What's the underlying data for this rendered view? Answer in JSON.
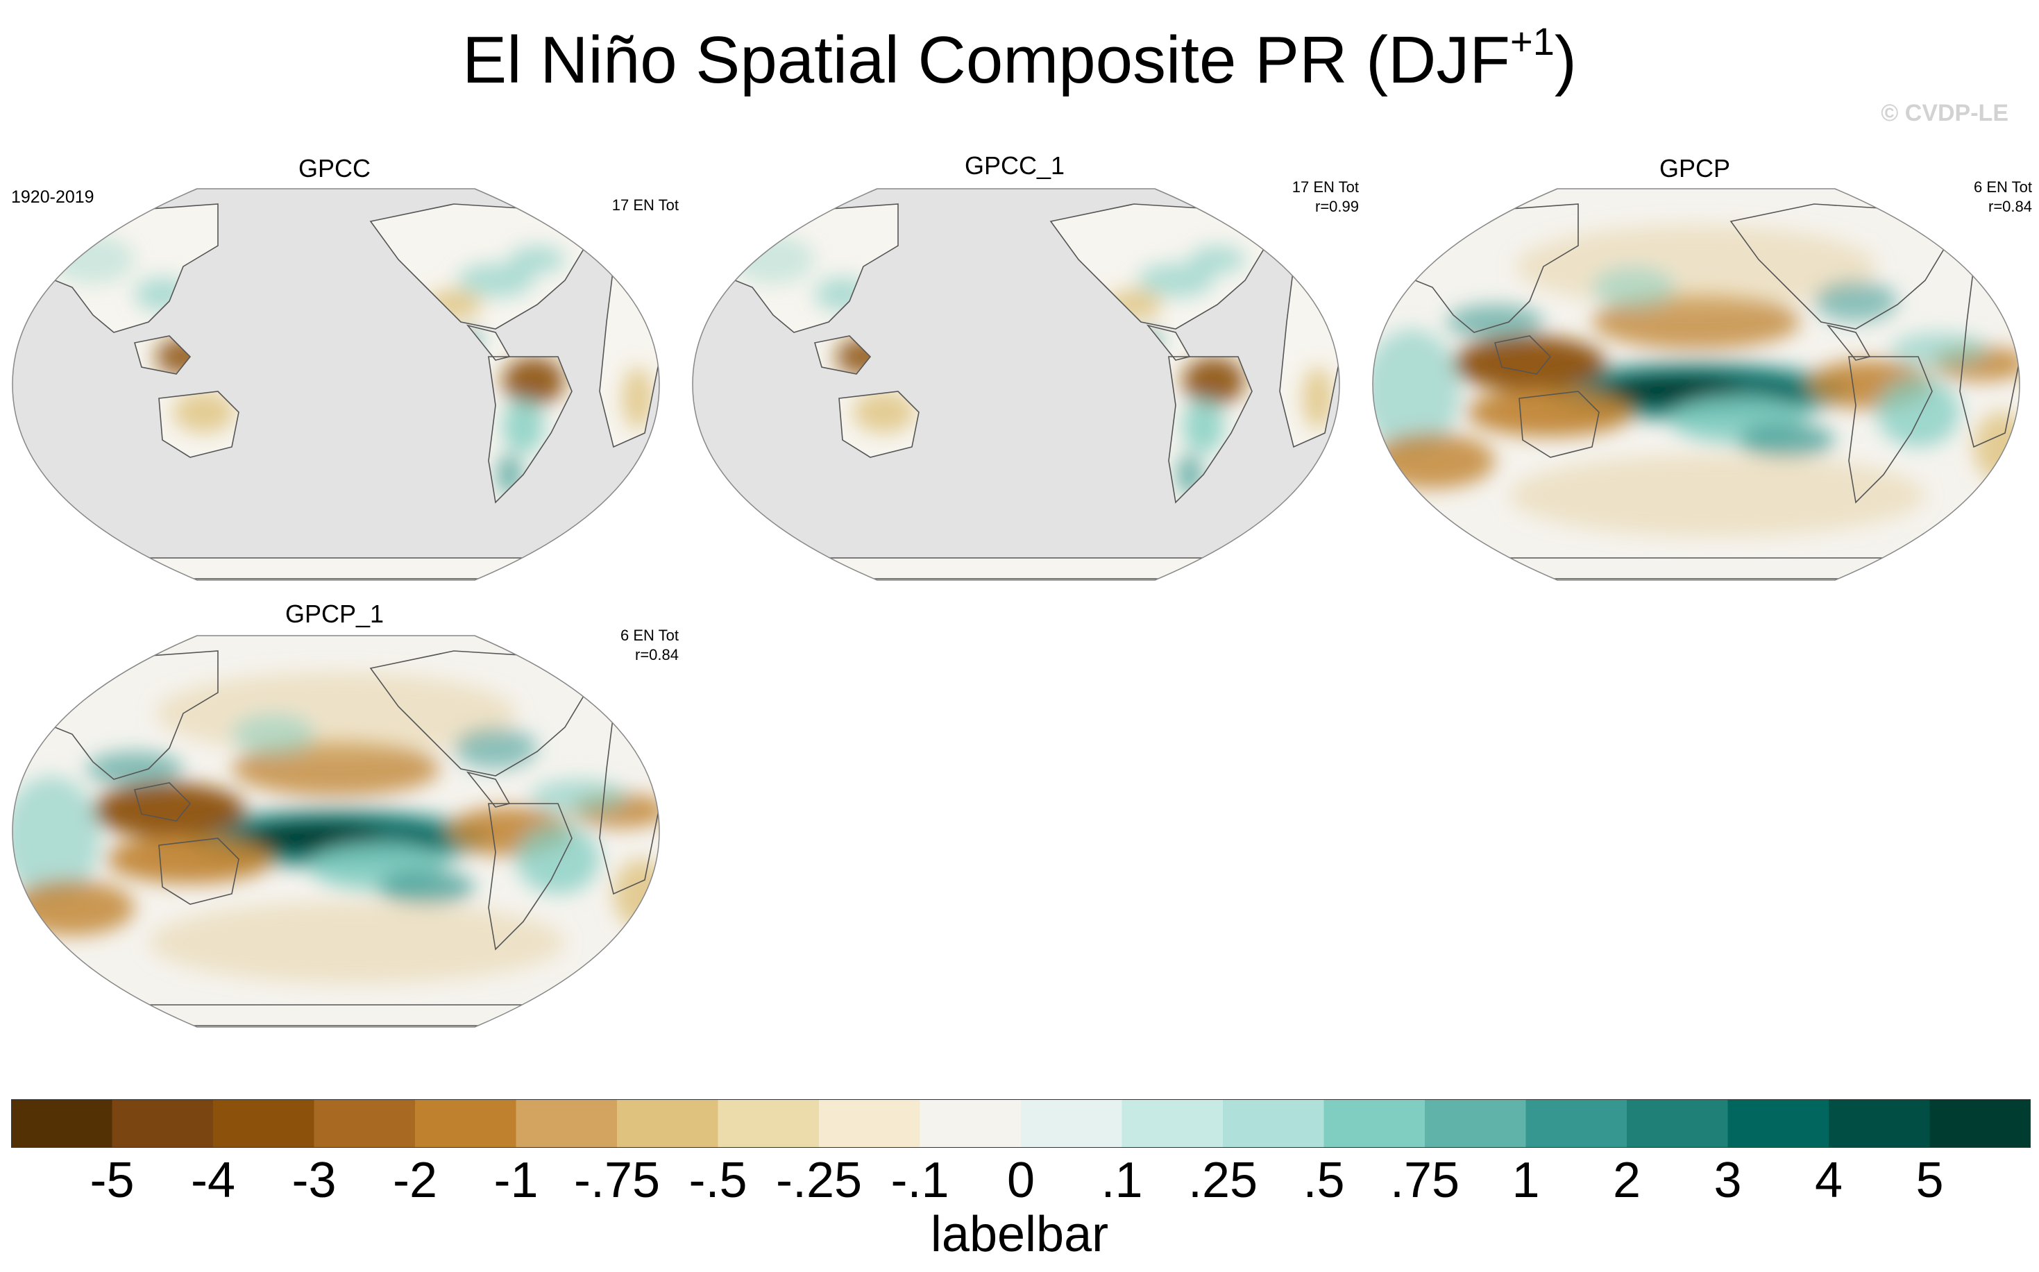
{
  "figure": {
    "title": "El Niño Spatial Composite PR (DJF",
    "title_sup": "+1",
    "title_close": ")",
    "watermark": "© CVDP-LE",
    "period": "1920-2019"
  },
  "panels": [
    {
      "name": "GPCC",
      "stat_line1": "17 EN Tot",
      "stat_line2": "",
      "field": "land-only"
    },
    {
      "name": "GPCC_1",
      "stat_line1": "17 EN Tot",
      "stat_line2": "r=0.99",
      "field": "land-only"
    },
    {
      "name": "GPCP",
      "stat_line1": "6 EN Tot",
      "stat_line2": "r=0.84",
      "field": "global"
    },
    {
      "name": "GPCP_1",
      "stat_line1": "6 EN Tot",
      "stat_line2": "r=0.84",
      "field": "global"
    }
  ],
  "labelbar": {
    "title": "labelbar",
    "labels": [
      "-5",
      "-4",
      "-3",
      "-2",
      "-1",
      "-.75",
      "-.5",
      "-.25",
      "-.1",
      "0",
      ".1",
      ".25",
      ".5",
      ".75",
      "1",
      "2",
      "3",
      "4",
      "5"
    ],
    "colors": [
      "#543005",
      "#7a4510",
      "#8c510a",
      "#a86a22",
      "#bf812d",
      "#d2a460",
      "#dfc27d",
      "#eddcab",
      "#f6ebd0",
      "#f5f3ee",
      "#e6f2f0",
      "#c7eae5",
      "#b0e0da",
      "#80cdc1",
      "#5fb3a8",
      "#35978f",
      "#1f8078",
      "#01665e",
      "#014e44",
      "#003c30"
    ]
  },
  "colors": {
    "missing": "#e3e3e3",
    "coast": "#555555",
    "brown_strong": "#8c510a",
    "brown_mid": "#bf812d",
    "brown_light": "#dfc27d",
    "teal_light": "#80cdc1",
    "teal_mid": "#35978f",
    "teal_dark": "#01665e",
    "teal_darkest": "#003c30"
  }
}
